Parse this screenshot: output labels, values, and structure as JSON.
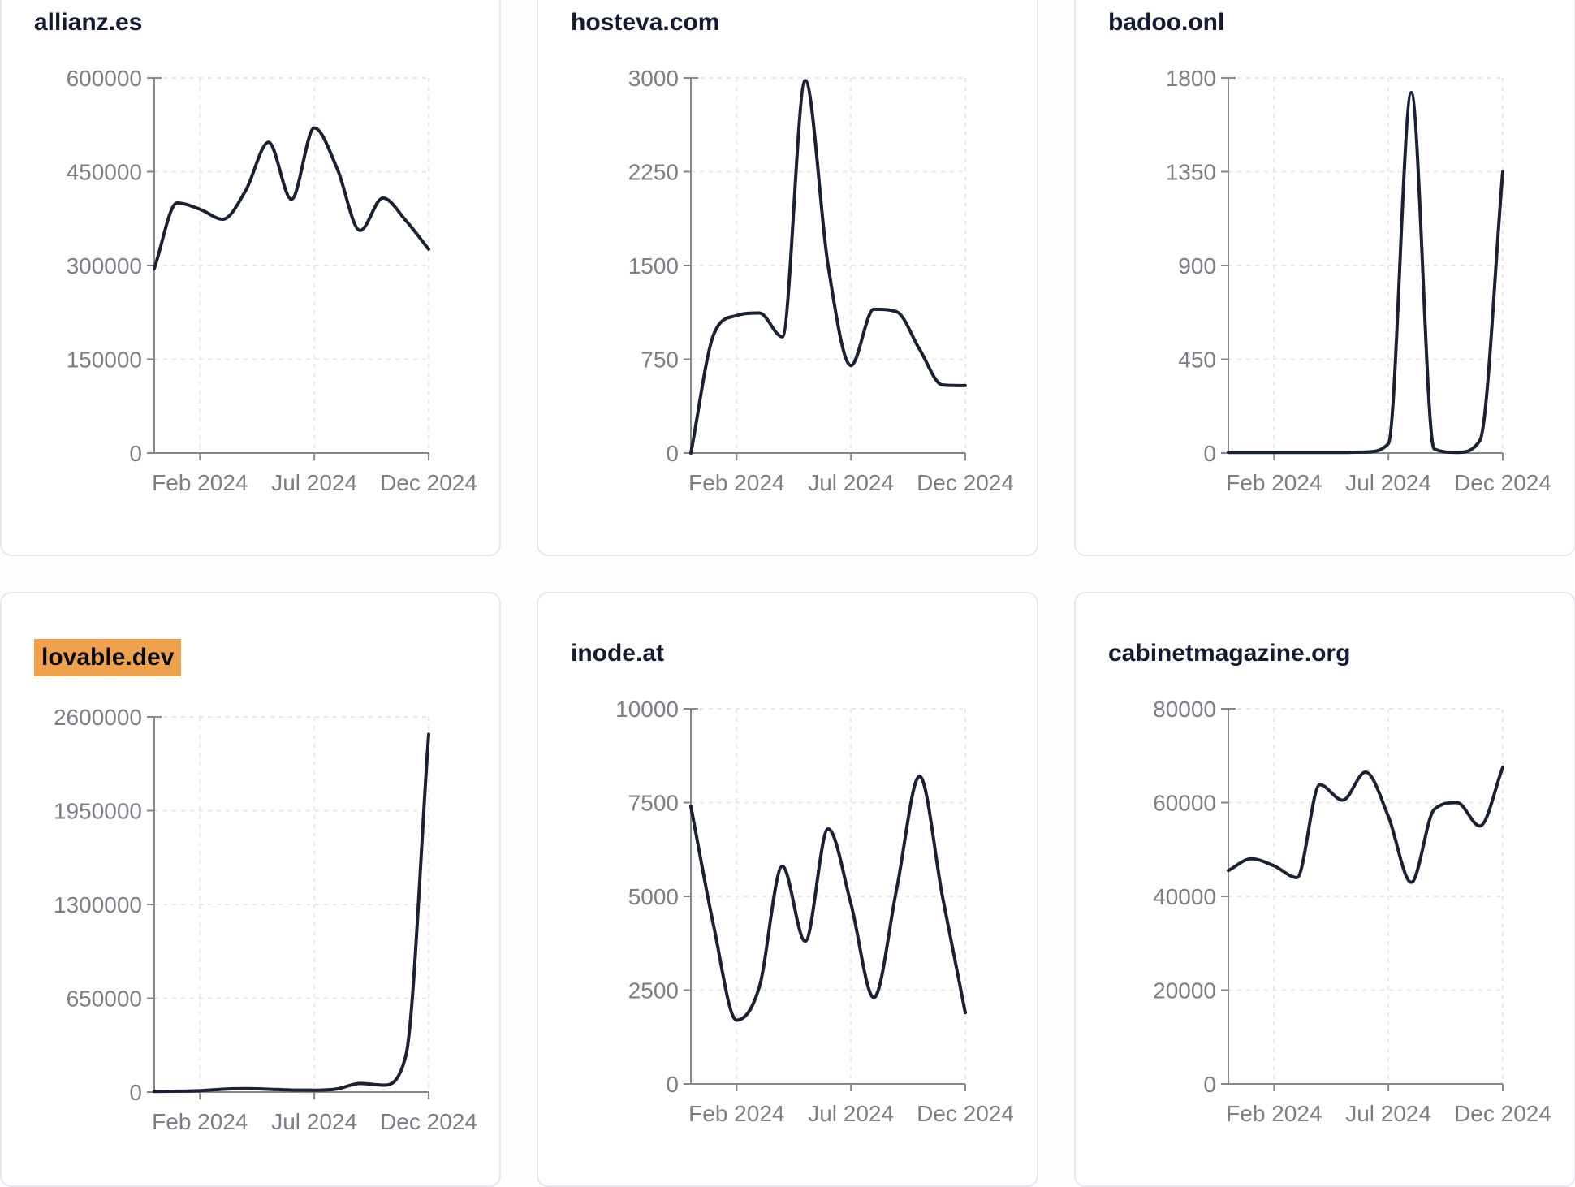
{
  "style": {
    "line_color": "#1b2134",
    "axis_color": "#85878d",
    "grid_color": "#e7e7ec",
    "label_color": "#7b7e85",
    "title_color": "#131b33",
    "highlight_color": "#f0a14c",
    "card_border_color": "#e6e7ef",
    "card_background": "#ffffff"
  },
  "x_axis": {
    "tick_labels": [
      "Feb 2024",
      "Jul 2024",
      "Dec 2024"
    ],
    "tick_indices": [
      2,
      7,
      12
    ],
    "points_count": 13
  },
  "chart_data": [
    {
      "type": "line",
      "title": "allianz.es",
      "highlighted": false,
      "ylim": [
        0,
        600000
      ],
      "yticks": [
        0,
        150000,
        300000,
        450000,
        600000
      ],
      "ytick_labels": [
        "0",
        "150000",
        "300000",
        "450000",
        "600000"
      ],
      "x_tick_labels": [
        "Feb 2024",
        "Jul 2024",
        "Dec 2024"
      ],
      "values": [
        295000,
        400000,
        390000,
        374000,
        420000,
        497000,
        406000,
        520000,
        455000,
        356000,
        408000,
        372000,
        326000
      ]
    },
    {
      "type": "line",
      "title": "hosteva.com",
      "highlighted": false,
      "ylim": [
        0,
        3000
      ],
      "yticks": [
        0,
        750,
        1500,
        2250,
        3000
      ],
      "ytick_labels": [
        "0",
        "750",
        "1500",
        "2250",
        "3000"
      ],
      "x_tick_labels": [
        "Feb 2024",
        "Jul 2024",
        "Dec 2024"
      ],
      "values": [
        0,
        950,
        1100,
        1120,
        930,
        2980,
        1500,
        700,
        1150,
        1130,
        830,
        545,
        540
      ]
    },
    {
      "type": "line",
      "title": "badoo.onl",
      "highlighted": false,
      "ylim": [
        0,
        1800
      ],
      "yticks": [
        0,
        450,
        900,
        1350,
        1800
      ],
      "ytick_labels": [
        "0",
        "450",
        "900",
        "1350",
        "1800"
      ],
      "x_tick_labels": [
        "Feb 2024",
        "Jul 2024",
        "Dec 2024"
      ],
      "values": [
        3,
        3,
        3,
        3,
        3,
        3,
        5,
        45,
        1730,
        20,
        3,
        60,
        1350
      ]
    },
    {
      "type": "line",
      "title": "lovable.dev",
      "highlighted": true,
      "ylim": [
        0,
        2600000
      ],
      "yticks": [
        0,
        650000,
        1300000,
        1950000,
        2600000
      ],
      "ytick_labels": [
        "0",
        "650000",
        "1300000",
        "1950000",
        "2600000"
      ],
      "x_tick_labels": [
        "Feb 2024",
        "Jul 2024",
        "Dec 2024"
      ],
      "values": [
        4000,
        6000,
        10000,
        20000,
        24000,
        20000,
        14000,
        13000,
        22000,
        60000,
        48000,
        250000,
        2480000
      ]
    },
    {
      "type": "line",
      "title": "inode.at",
      "highlighted": false,
      "ylim": [
        0,
        10000
      ],
      "yticks": [
        0,
        2500,
        5000,
        7500,
        10000
      ],
      "ytick_labels": [
        "0",
        "2500",
        "5000",
        "7500",
        "10000"
      ],
      "x_tick_labels": [
        "Feb 2024",
        "Jul 2024",
        "Dec 2024"
      ],
      "values": [
        7400,
        4200,
        1700,
        2600,
        5800,
        3800,
        6800,
        4800,
        2300,
        5200,
        8200,
        5000,
        1900
      ]
    },
    {
      "type": "line",
      "title": "cabinetmagazine.org",
      "highlighted": false,
      "ylim": [
        0,
        80000
      ],
      "yticks": [
        0,
        20000,
        40000,
        60000,
        80000
      ],
      "ytick_labels": [
        "0",
        "20000",
        "40000",
        "60000",
        "80000"
      ],
      "x_tick_labels": [
        "Feb 2024",
        "Jul 2024",
        "Dec 2024"
      ],
      "values": [
        45500,
        48000,
        46500,
        44000,
        63800,
        60500,
        66500,
        57000,
        43000,
        58500,
        60000,
        55000,
        67500
      ]
    }
  ]
}
